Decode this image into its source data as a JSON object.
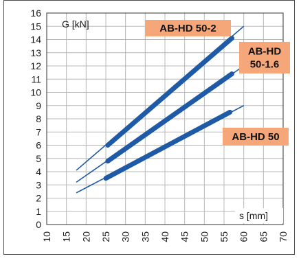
{
  "chart_data": {
    "type": "line",
    "title": "",
    "ylabel": "G [kN]",
    "xlabel": "s [mm]",
    "xlim": [
      10,
      70
    ],
    "ylim": [
      0,
      16
    ],
    "x_ticks": [
      "10",
      "15",
      "20",
      "25",
      "30",
      "35",
      "40",
      "45",
      "50",
      "55",
      "60",
      "65",
      "70"
    ],
    "y_ticks": [
      "0",
      "1",
      "2",
      "3",
      "4",
      "5",
      "6",
      "7",
      "8",
      "9",
      "10",
      "11",
      "12",
      "13",
      "14",
      "15",
      "16"
    ],
    "grid": true,
    "series": [
      {
        "name": "AB-HD 50-2",
        "color": "#1f5aa6",
        "line": [
          [
            17.5,
            4.1
          ],
          [
            60,
            15.0
          ]
        ],
        "bold": [
          [
            25.5,
            6.0
          ],
          [
            57,
            14.1
          ]
        ]
      },
      {
        "name": "AB-HD 50-1.6",
        "color": "#1f5aa6",
        "line": [
          [
            17.5,
            3.2
          ],
          [
            60,
            12.0
          ]
        ],
        "bold": [
          [
            25.5,
            4.8
          ],
          [
            57,
            11.4
          ]
        ]
      },
      {
        "name": "AB-HD 50",
        "color": "#1f5aa6",
        "line": [
          [
            17.5,
            2.4
          ],
          [
            60,
            9.0
          ]
        ],
        "bold": [
          [
            25,
            3.5
          ],
          [
            56.5,
            8.5
          ]
        ]
      }
    ],
    "annotations": [
      {
        "lines": [
          "AB-HD 50-2"
        ],
        "bg": "#f5a77a"
      },
      {
        "lines": [
          "AB-HD",
          "50-1.6"
        ],
        "bg": "#f5a77a"
      },
      {
        "lines": [
          "AB-HD 50"
        ],
        "bg": "#f5a77a"
      }
    ]
  }
}
